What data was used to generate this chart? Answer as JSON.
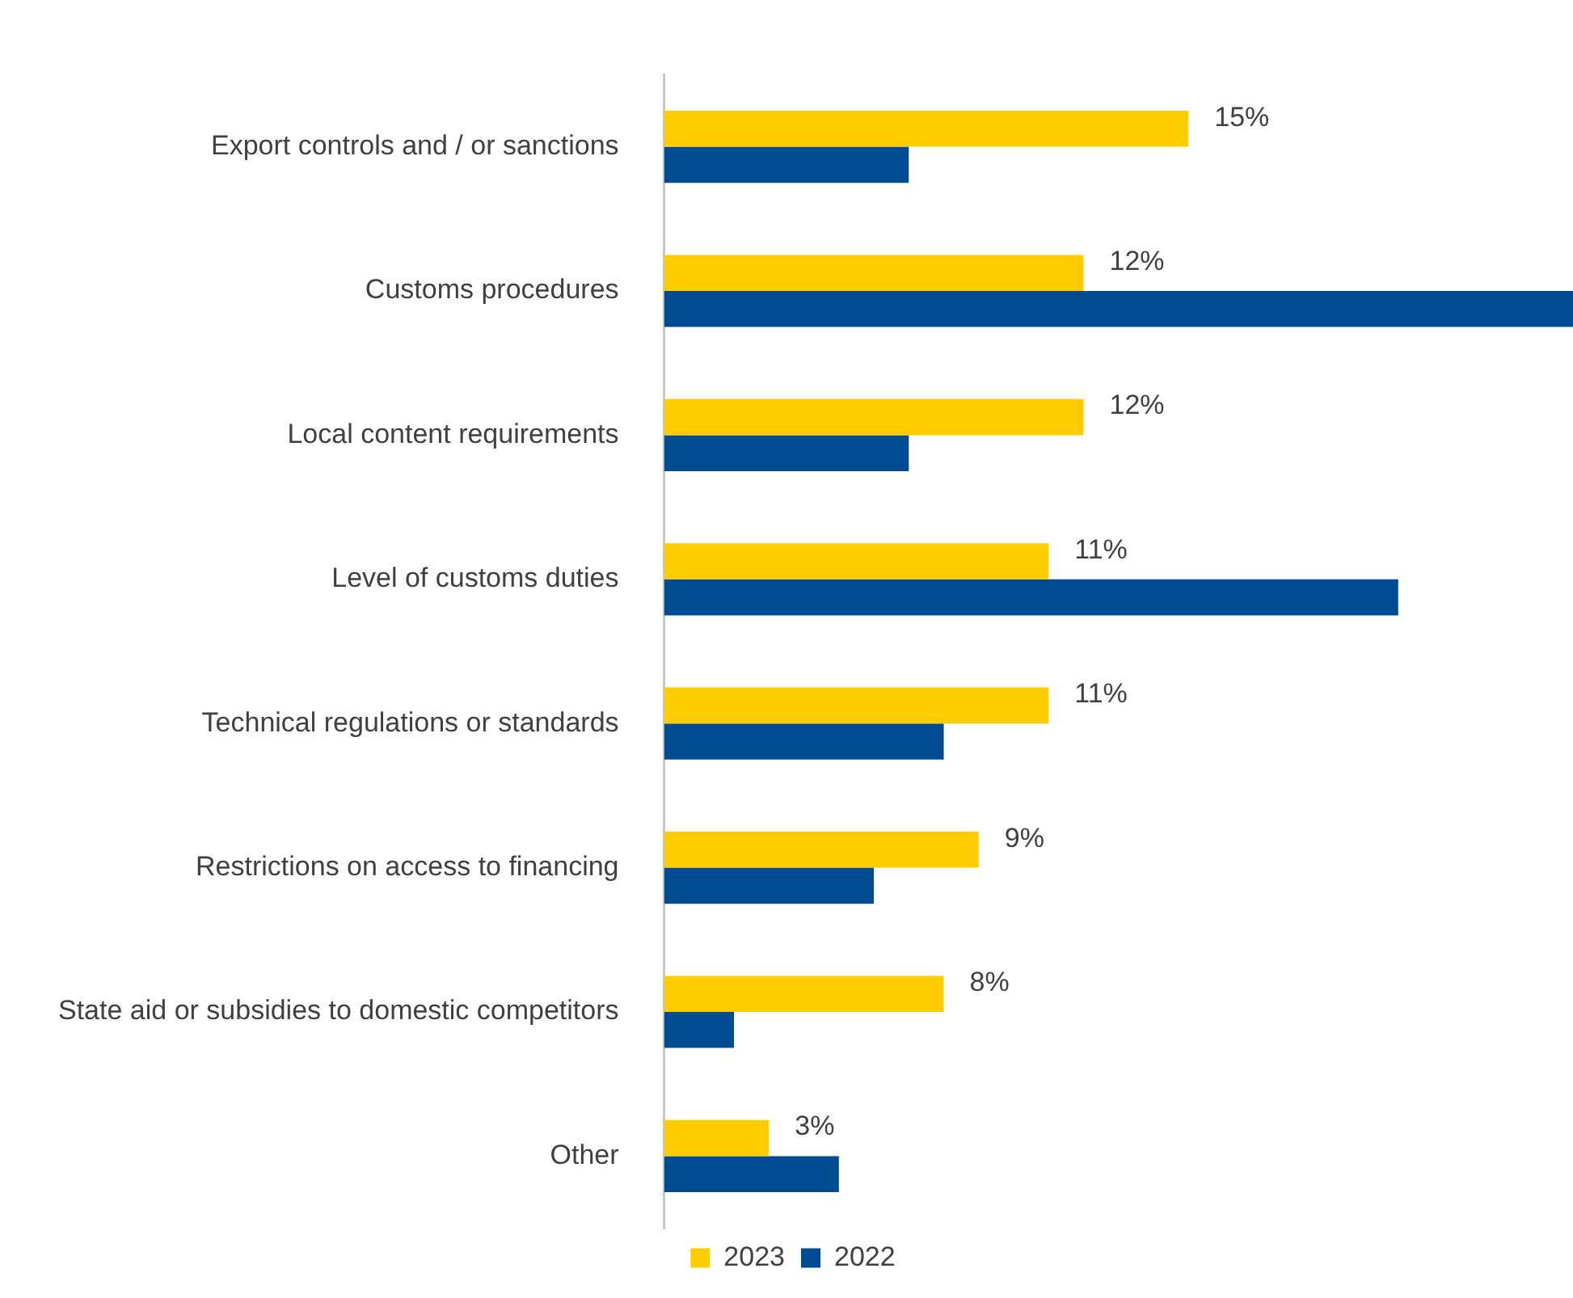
{
  "chart_data": {
    "type": "bar",
    "orientation": "horizontal",
    "categories": [
      "Export controls and / or sanctions",
      "Customs procedures",
      "Local content requirements",
      "Level of customs duties",
      "Technical regulations or standards",
      "Restrictions on access to financing",
      "State aid or subsidies to domestic competitors",
      "Other"
    ],
    "series": [
      {
        "name": "2023",
        "color": "#ffcc00",
        "values": [
          15,
          12,
          12,
          11,
          11,
          9,
          8,
          3
        ],
        "value_labels": [
          "15%",
          "12%",
          "12%",
          "11%",
          "11%",
          "9%",
          "8%",
          "3%"
        ]
      },
      {
        "name": "2022",
        "color": "#004c93",
        "values": [
          7,
          26,
          7,
          21,
          8,
          6,
          2,
          5
        ]
      }
    ],
    "xlim": [
      0,
      26
    ],
    "legend": "bottom"
  }
}
